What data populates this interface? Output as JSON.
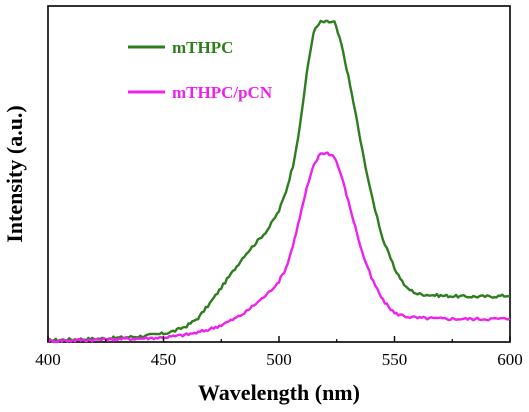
{
  "chart_data": {
    "type": "line",
    "xlabel": "Wavelength (nm)",
    "ylabel": "Intensity (a.u.)",
    "xlim": [
      400,
      600
    ],
    "x_ticks": [
      400,
      450,
      500,
      550,
      600
    ],
    "y_ticks_shown": false,
    "ylim": [
      0,
      105
    ],
    "grid": false,
    "legend_position": "top-left",
    "x": [
      400,
      410,
      420,
      430,
      440,
      450,
      455,
      460,
      465,
      470,
      475,
      480,
      485,
      490,
      495,
      500,
      503,
      506,
      509,
      512,
      515,
      518,
      521,
      524,
      527,
      530,
      533,
      536,
      540,
      545,
      550,
      555,
      560,
      570,
      580,
      590,
      600
    ],
    "series": [
      {
        "name": "mTHPC",
        "color": "#2e7d1e",
        "values": [
          0.5,
          0.8,
          1.0,
          1.3,
          1.8,
          2.6,
          3.5,
          5.0,
          7.5,
          12,
          17,
          22,
          27,
          31,
          35,
          41,
          47,
          55,
          67,
          84,
          97,
          100,
          100,
          100,
          93,
          83,
          72,
          60,
          46,
          32,
          23,
          17,
          15,
          14.5,
          14.2,
          14.2,
          14.5
        ]
      },
      {
        "name": "mTHPC/pCN",
        "color": "#ee22ee",
        "values": [
          0.3,
          0.5,
          0.7,
          0.9,
          1.1,
          1.4,
          1.8,
          2.3,
          3.0,
          4.0,
          5.3,
          7.0,
          9.0,
          12,
          15,
          19,
          23,
          30,
          39,
          48,
          55,
          59,
          59,
          58,
          52,
          44,
          36,
          28,
          20,
          13,
          9,
          8,
          7.5,
          7.3,
          7.2,
          7.2,
          7.3
        ]
      }
    ]
  }
}
